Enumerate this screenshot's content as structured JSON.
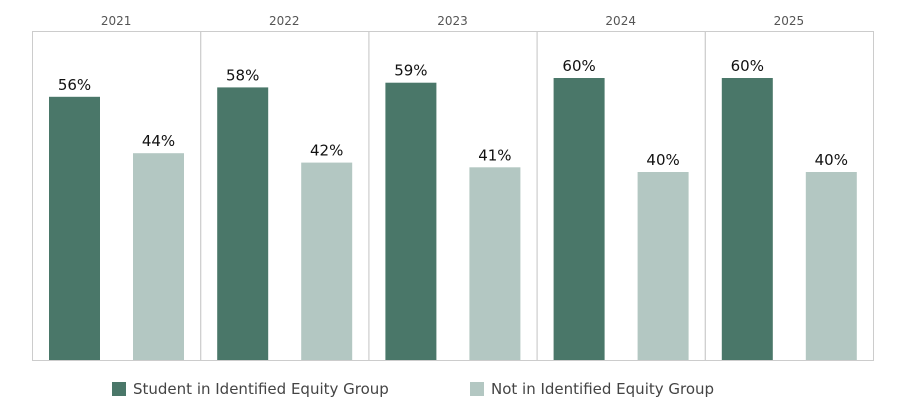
{
  "colors": {
    "equity": "#4a7769",
    "not_equity": "#b3c7c2",
    "panel_border": "#cccccc",
    "year_label": "#555555",
    "value_label": "#111111"
  },
  "chart_data": {
    "type": "bar",
    "categories": [
      "2021",
      "2022",
      "2023",
      "2024",
      "2025"
    ],
    "series": [
      {
        "name": "Student in Identified Equity Group",
        "values": [
          56,
          58,
          59,
          60,
          60
        ],
        "labels": [
          "56%",
          "58%",
          "59%",
          "60%",
          "60%"
        ]
      },
      {
        "name": "Not in Identified Equity Group",
        "values": [
          44,
          42,
          41,
          40,
          40
        ],
        "labels": [
          "44%",
          "42%",
          "41%",
          "40%",
          "40%"
        ]
      }
    ],
    "ylim": [
      0,
      70
    ],
    "grid": false,
    "legend_position": "bottom"
  }
}
